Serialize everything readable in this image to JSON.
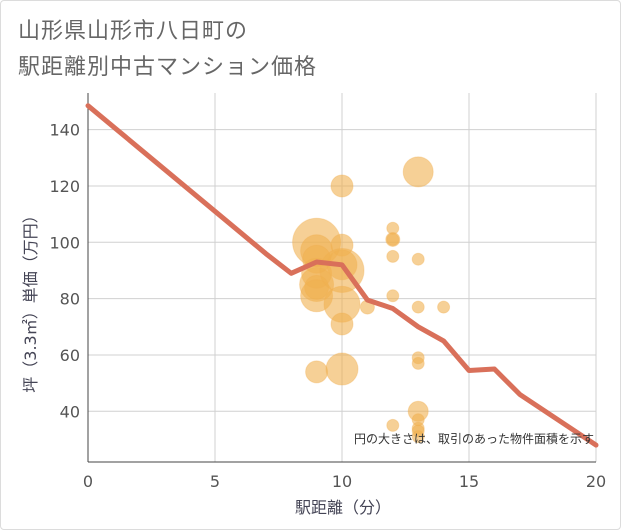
{
  "title_line1": "山形県山形市八日町の",
  "title_line2": "駅距離別中古マンション価格",
  "colors": {
    "line": "#d9705a",
    "bubble": "#f0b050",
    "grid": "#d0d0d0",
    "axis": "#444444",
    "background": "#ffffff"
  },
  "chart_data": {
    "type": "scatter",
    "xlabel": "駅距離（分）",
    "ylabel": "坪（3.3㎡）単価（万円）",
    "xlim": [
      0,
      20
    ],
    "ylim": [
      22,
      153
    ],
    "xticks": [
      0,
      5,
      10,
      15,
      20
    ],
    "yticks": [
      40,
      60,
      80,
      100,
      120,
      140
    ],
    "grid": true,
    "note": "円の大きさは、取引のあった物件面積を示す",
    "trend_line": {
      "x": [
        0,
        1,
        2,
        3,
        4,
        5,
        6,
        7,
        8,
        9,
        10,
        11,
        12,
        13,
        14,
        15,
        16,
        17,
        18,
        19,
        20
      ],
      "y": [
        148.5,
        141,
        133.5,
        126,
        118.5,
        111,
        103.5,
        96,
        89,
        93,
        92,
        79.5,
        76.5,
        70,
        65,
        54.5,
        55,
        46,
        40,
        34,
        28
      ]
    },
    "bubbles": [
      {
        "x": 9,
        "y": 100,
        "size": 24
      },
      {
        "x": 9,
        "y": 97,
        "size": 16
      },
      {
        "x": 9,
        "y": 94,
        "size": 14
      },
      {
        "x": 9,
        "y": 89,
        "size": 15
      },
      {
        "x": 9,
        "y": 85,
        "size": 17
      },
      {
        "x": 9,
        "y": 84,
        "size": 12
      },
      {
        "x": 9,
        "y": 81,
        "size": 16
      },
      {
        "x": 9,
        "y": 54,
        "size": 11
      },
      {
        "x": 10,
        "y": 120,
        "size": 11
      },
      {
        "x": 10,
        "y": 99,
        "size": 11
      },
      {
        "x": 10,
        "y": 92,
        "size": 15
      },
      {
        "x": 10,
        "y": 90,
        "size": 22
      },
      {
        "x": 10,
        "y": 78,
        "size": 18
      },
      {
        "x": 10,
        "y": 71,
        "size": 11
      },
      {
        "x": 10,
        "y": 55,
        "size": 16
      },
      {
        "x": 11,
        "y": 77,
        "size": 7
      },
      {
        "x": 12,
        "y": 105,
        "size": 6
      },
      {
        "x": 12,
        "y": 101,
        "size": 7
      },
      {
        "x": 12,
        "y": 101,
        "size": 6
      },
      {
        "x": 12,
        "y": 95,
        "size": 6
      },
      {
        "x": 12,
        "y": 81,
        "size": 6
      },
      {
        "x": 12,
        "y": 35,
        "size": 6
      },
      {
        "x": 13,
        "y": 125,
        "size": 15
      },
      {
        "x": 13,
        "y": 94,
        "size": 6
      },
      {
        "x": 13,
        "y": 77,
        "size": 6
      },
      {
        "x": 13,
        "y": 59,
        "size": 6
      },
      {
        "x": 13,
        "y": 57,
        "size": 6
      },
      {
        "x": 13,
        "y": 40,
        "size": 10
      },
      {
        "x": 13,
        "y": 37,
        "size": 6
      },
      {
        "x": 13,
        "y": 34,
        "size": 6
      },
      {
        "x": 13,
        "y": 33,
        "size": 6
      },
      {
        "x": 13,
        "y": 31,
        "size": 6
      },
      {
        "x": 14,
        "y": 77,
        "size": 6
      }
    ]
  }
}
